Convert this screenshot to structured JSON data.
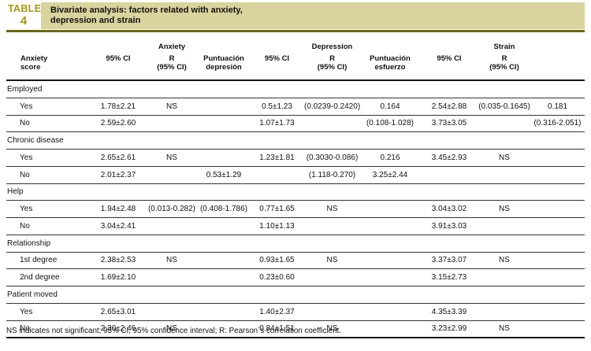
{
  "table_label": {
    "word": "TABLE",
    "number": "4"
  },
  "title": {
    "line1": "Bivariate analysis: factors related with anxiety,",
    "line2": "depression and strain"
  },
  "colors": {
    "banner_bg": "#d9d39c",
    "divider_rule": "#6c690f",
    "table_label_text": "#a9950a",
    "row_rule": "#343434",
    "heavy_rule": "#161616"
  },
  "group_headers": [
    "Anxiety",
    "Depression",
    "Strain"
  ],
  "column_headers": [
    "Anxiety\nscore",
    "95% CI",
    "R\n(95% CI)",
    "Puntuación\ndepresión",
    "95% CI",
    "R\n(95% CI)",
    "Puntuación\nesfuerzo",
    "95% CI",
    "R\n(95% CI)",
    ""
  ],
  "rows": [
    {
      "type": "section",
      "label": "Employed"
    },
    {
      "type": "data",
      "label": "Yes",
      "cells": [
        "1.78±2.21",
        "NS",
        "",
        "0.5±1.23",
        "(0.0239-0.2420)",
        "0.164",
        "2.54±2.88",
        "(0.035-0.1645)",
        "0.181"
      ]
    },
    {
      "type": "data",
      "label": "No",
      "cells": [
        "2.59±2.60",
        "",
        "",
        "1.07±1.73",
        "",
        "(0.108-1.028)",
        "3.73±3.05",
        "",
        "(0.316-2.051)"
      ]
    },
    {
      "type": "section",
      "label": "Chronic disease"
    },
    {
      "type": "data",
      "label": "Yes",
      "cells": [
        "2.65±2.61",
        "NS",
        "",
        "1.23±1.81",
        "(0.3030-0.086)",
        "0.216",
        "3.45±2.93",
        "NS",
        ""
      ]
    },
    {
      "type": "data",
      "label": "No",
      "cells": [
        "2.01±2.37",
        "",
        "0.53±1.29",
        "",
        "(1.118-0.270)",
        "3.25±2.44",
        "",
        "",
        ""
      ]
    },
    {
      "type": "section",
      "label": "Help"
    },
    {
      "type": "data",
      "label": "Yes",
      "cells": [
        "1.94±2.48",
        "(0.013-0.282)",
        "(0.408-1.786)",
        "0.77±1.65",
        "NS",
        "",
        "3.04±3.02",
        "NS",
        ""
      ]
    },
    {
      "type": "data",
      "label": "No",
      "cells": [
        "3.04±2.41",
        "",
        "",
        "1.10±1.13",
        "",
        "",
        "3.91±3.03",
        "",
        ""
      ]
    },
    {
      "type": "section",
      "label": "Relationship"
    },
    {
      "type": "data",
      "label": "1st degree",
      "cells": [
        "2.38±2.53",
        "NS",
        "",
        "0.93±1.65",
        "NS",
        "",
        "3.37±3.07",
        "NS",
        ""
      ]
    },
    {
      "type": "data",
      "label": "2nd degree",
      "cells": [
        "1.69±2.10",
        "",
        "",
        "0.23±0.60",
        "",
        "",
        "3.15±2.73",
        "",
        ""
      ]
    },
    {
      "type": "section",
      "label": "Patient moved"
    },
    {
      "type": "data",
      "label": "Yes",
      "cells": [
        "2.65±3.01",
        "",
        "",
        "1.40±2.37",
        "",
        "",
        "4.35±3.39",
        "",
        ""
      ]
    },
    {
      "type": "data",
      "label": "No",
      "cells": [
        "2.30±2.46",
        "NS",
        "",
        "0.84±1.51",
        "NS",
        "",
        "3.23±2.99",
        "NS",
        ""
      ]
    }
  ],
  "footnote": "NS indicates not significant; 95% CI, 95% confidence interval; R: Pearson´s correlation coefficient."
}
